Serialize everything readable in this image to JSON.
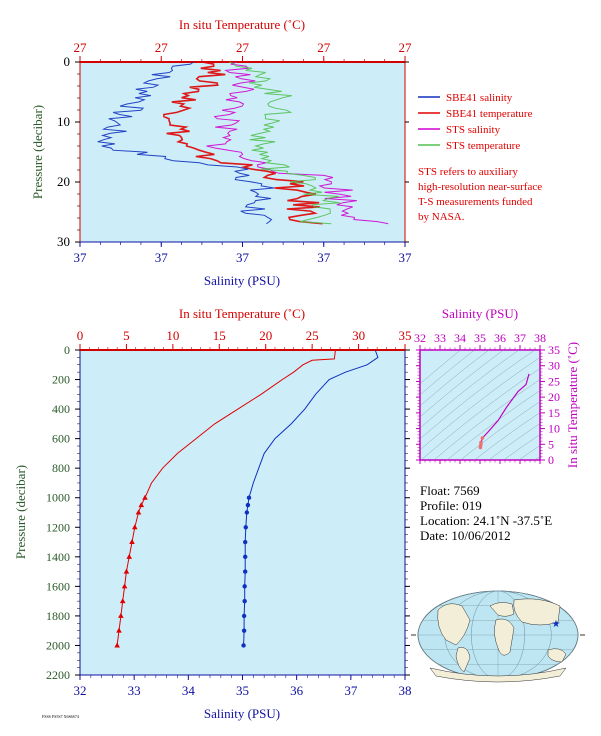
{
  "chart_data": [
    {
      "type": "line",
      "name": "upper",
      "title_top": "In situ Temperature (˚C)",
      "top_ticks": [
        "27",
        "27",
        "27",
        "27",
        "27"
      ],
      "xlabel": "Salinity (PSU)",
      "bottom_ticks": [
        "37",
        "37",
        "37",
        "37",
        "37"
      ],
      "ylabel": "Pressure (decibar)",
      "yticks": [
        0,
        10,
        20,
        30
      ],
      "ylim": [
        0,
        30
      ],
      "legend": [
        {
          "name": "SBE41 salinity",
          "color": "#1030c0"
        },
        {
          "name": "SBE41 temperature",
          "color": "#e00000"
        },
        {
          "name": "STS salinity",
          "color": "#d000d0"
        },
        {
          "name": "STS temperature",
          "color": "#50c050"
        }
      ],
      "note": [
        "STS refers to auxiliary",
        "high-resolution near-surface",
        "T-S measurements funded",
        "by NASA."
      ],
      "note_color": "#e00000",
      "series": [
        {
          "name": "SBE41 salinity",
          "color": "#1030c0",
          "x": [
            0.35,
            0.22,
            0.2,
            0.12,
            0.08,
            0.25,
            0.52,
            0.55,
            0.53
          ],
          "y": [
            0,
            3,
            6,
            9,
            14,
            16,
            18,
            22,
            27
          ]
        },
        {
          "name": "SBE41 temperature",
          "color": "#e00000",
          "x": [
            0.42,
            0.4,
            0.33,
            0.3,
            0.31,
            0.4,
            0.62,
            0.68,
            0.7
          ],
          "y": [
            0,
            3,
            6,
            9,
            14,
            16,
            19,
            23,
            27
          ]
        },
        {
          "name": "STS salinity",
          "color": "#d000d0",
          "x": [
            0.48,
            0.5,
            0.49,
            0.45,
            0.43,
            0.55,
            0.78,
            0.82,
            0.9
          ],
          "y": [
            0,
            3,
            6,
            9,
            14,
            17,
            20,
            24,
            27
          ]
        },
        {
          "name": "STS temperature",
          "color": "#50c050",
          "x": [
            0.5,
            0.55,
            0.62,
            0.6,
            0.55,
            0.58,
            0.75,
            0.74,
            0.72
          ],
          "y": [
            0,
            3,
            6,
            9,
            14,
            17,
            21,
            25,
            27
          ]
        }
      ]
    },
    {
      "type": "line",
      "name": "main",
      "title_top": "In situ Temperature (˚C)",
      "top_ticks": [
        "0",
        "5",
        "10",
        "15",
        "20",
        "25",
        "30",
        "35"
      ],
      "xlim_temperature": [
        0,
        35
      ],
      "xlabel": "Salinity (PSU)",
      "bottom_ticks": [
        "32",
        "33",
        "34",
        "35",
        "36",
        "37",
        "38"
      ],
      "xlim_salinity": [
        32,
        38
      ],
      "ylabel": "Pressure (decibar)",
      "yticks": [
        "0",
        "200",
        "400",
        "600",
        "800",
        "1000",
        "1200",
        "1400",
        "1600",
        "1800",
        "2000",
        "2200"
      ],
      "ylim": [
        0,
        2200
      ],
      "series": [
        {
          "name": "temperature",
          "color": "#e00000",
          "marker": "triangle",
          "pressure": [
            0,
            60,
            70,
            100,
            150,
            200,
            300,
            400,
            500,
            600,
            700,
            800,
            900,
            1000,
            1050,
            1100,
            1200,
            1300,
            1400,
            1500,
            1600,
            1700,
            1800,
            1900,
            2000
          ],
          "values": [
            27.5,
            27.4,
            25.0,
            24.0,
            23.0,
            21.8,
            19.5,
            17.0,
            14.5,
            12.5,
            10.5,
            8.9,
            7.7,
            7.0,
            6.6,
            6.3,
            5.9,
            5.6,
            5.3,
            5.0,
            4.8,
            4.6,
            4.4,
            4.2,
            4.0
          ]
        },
        {
          "name": "salinity",
          "color": "#1030c0",
          "marker": "circle",
          "pressure": [
            0,
            50,
            100,
            150,
            200,
            300,
            400,
            500,
            600,
            700,
            800,
            900,
            1000,
            1050,
            1100,
            1200,
            1300,
            1400,
            1500,
            1600,
            1700,
            1800,
            1900,
            2000
          ],
          "values": [
            37.45,
            37.5,
            37.3,
            36.9,
            36.6,
            36.35,
            36.15,
            35.9,
            35.6,
            35.4,
            35.3,
            35.2,
            35.12,
            35.1,
            35.08,
            35.06,
            35.05,
            35.05,
            35.05,
            35.04,
            35.04,
            35.03,
            35.03,
            35.02
          ]
        }
      ]
    },
    {
      "type": "line",
      "name": "ts_diagram",
      "title_top": "Salinity (PSU)",
      "top_ticks": [
        "32",
        "33",
        "34",
        "35",
        "36",
        "37",
        "38"
      ],
      "xlim": [
        32,
        38
      ],
      "ylabel_right": "In situ Temperature (˚C)",
      "right_ticks": [
        "0",
        "5",
        "10",
        "15",
        "20",
        "25",
        "30",
        "35"
      ],
      "ylim": [
        0,
        35
      ],
      "color": "#c000c0",
      "series": [
        {
          "name": "T-S",
          "salinity": [
            37.45,
            37.3,
            36.9,
            36.35,
            35.9,
            35.4,
            35.12,
            35.05,
            35.04,
            35.02
          ],
          "temperature": [
            27.4,
            24.0,
            21.8,
            17.0,
            12.5,
            8.9,
            7.0,
            5.6,
            4.8,
            4.0
          ]
        }
      ]
    }
  ],
  "float_info": {
    "float": "Float:  7569",
    "profile": "Profile:  019",
    "location": "Location:  24.1˚N  -37.5˚E",
    "date": "Date:  10/06/2012"
  },
  "footer_small": "FSSS FS5S7 X6S6S74",
  "colors": {
    "plot_bg": "#cdeef8",
    "temperature": "#e00000",
    "salinity": "#1030c0",
    "axis_red": "#d40000",
    "axis_blue": "#1010a0",
    "magenta": "#c000c0",
    "ocean": "#bde6f2",
    "land": "#f3eed8"
  }
}
